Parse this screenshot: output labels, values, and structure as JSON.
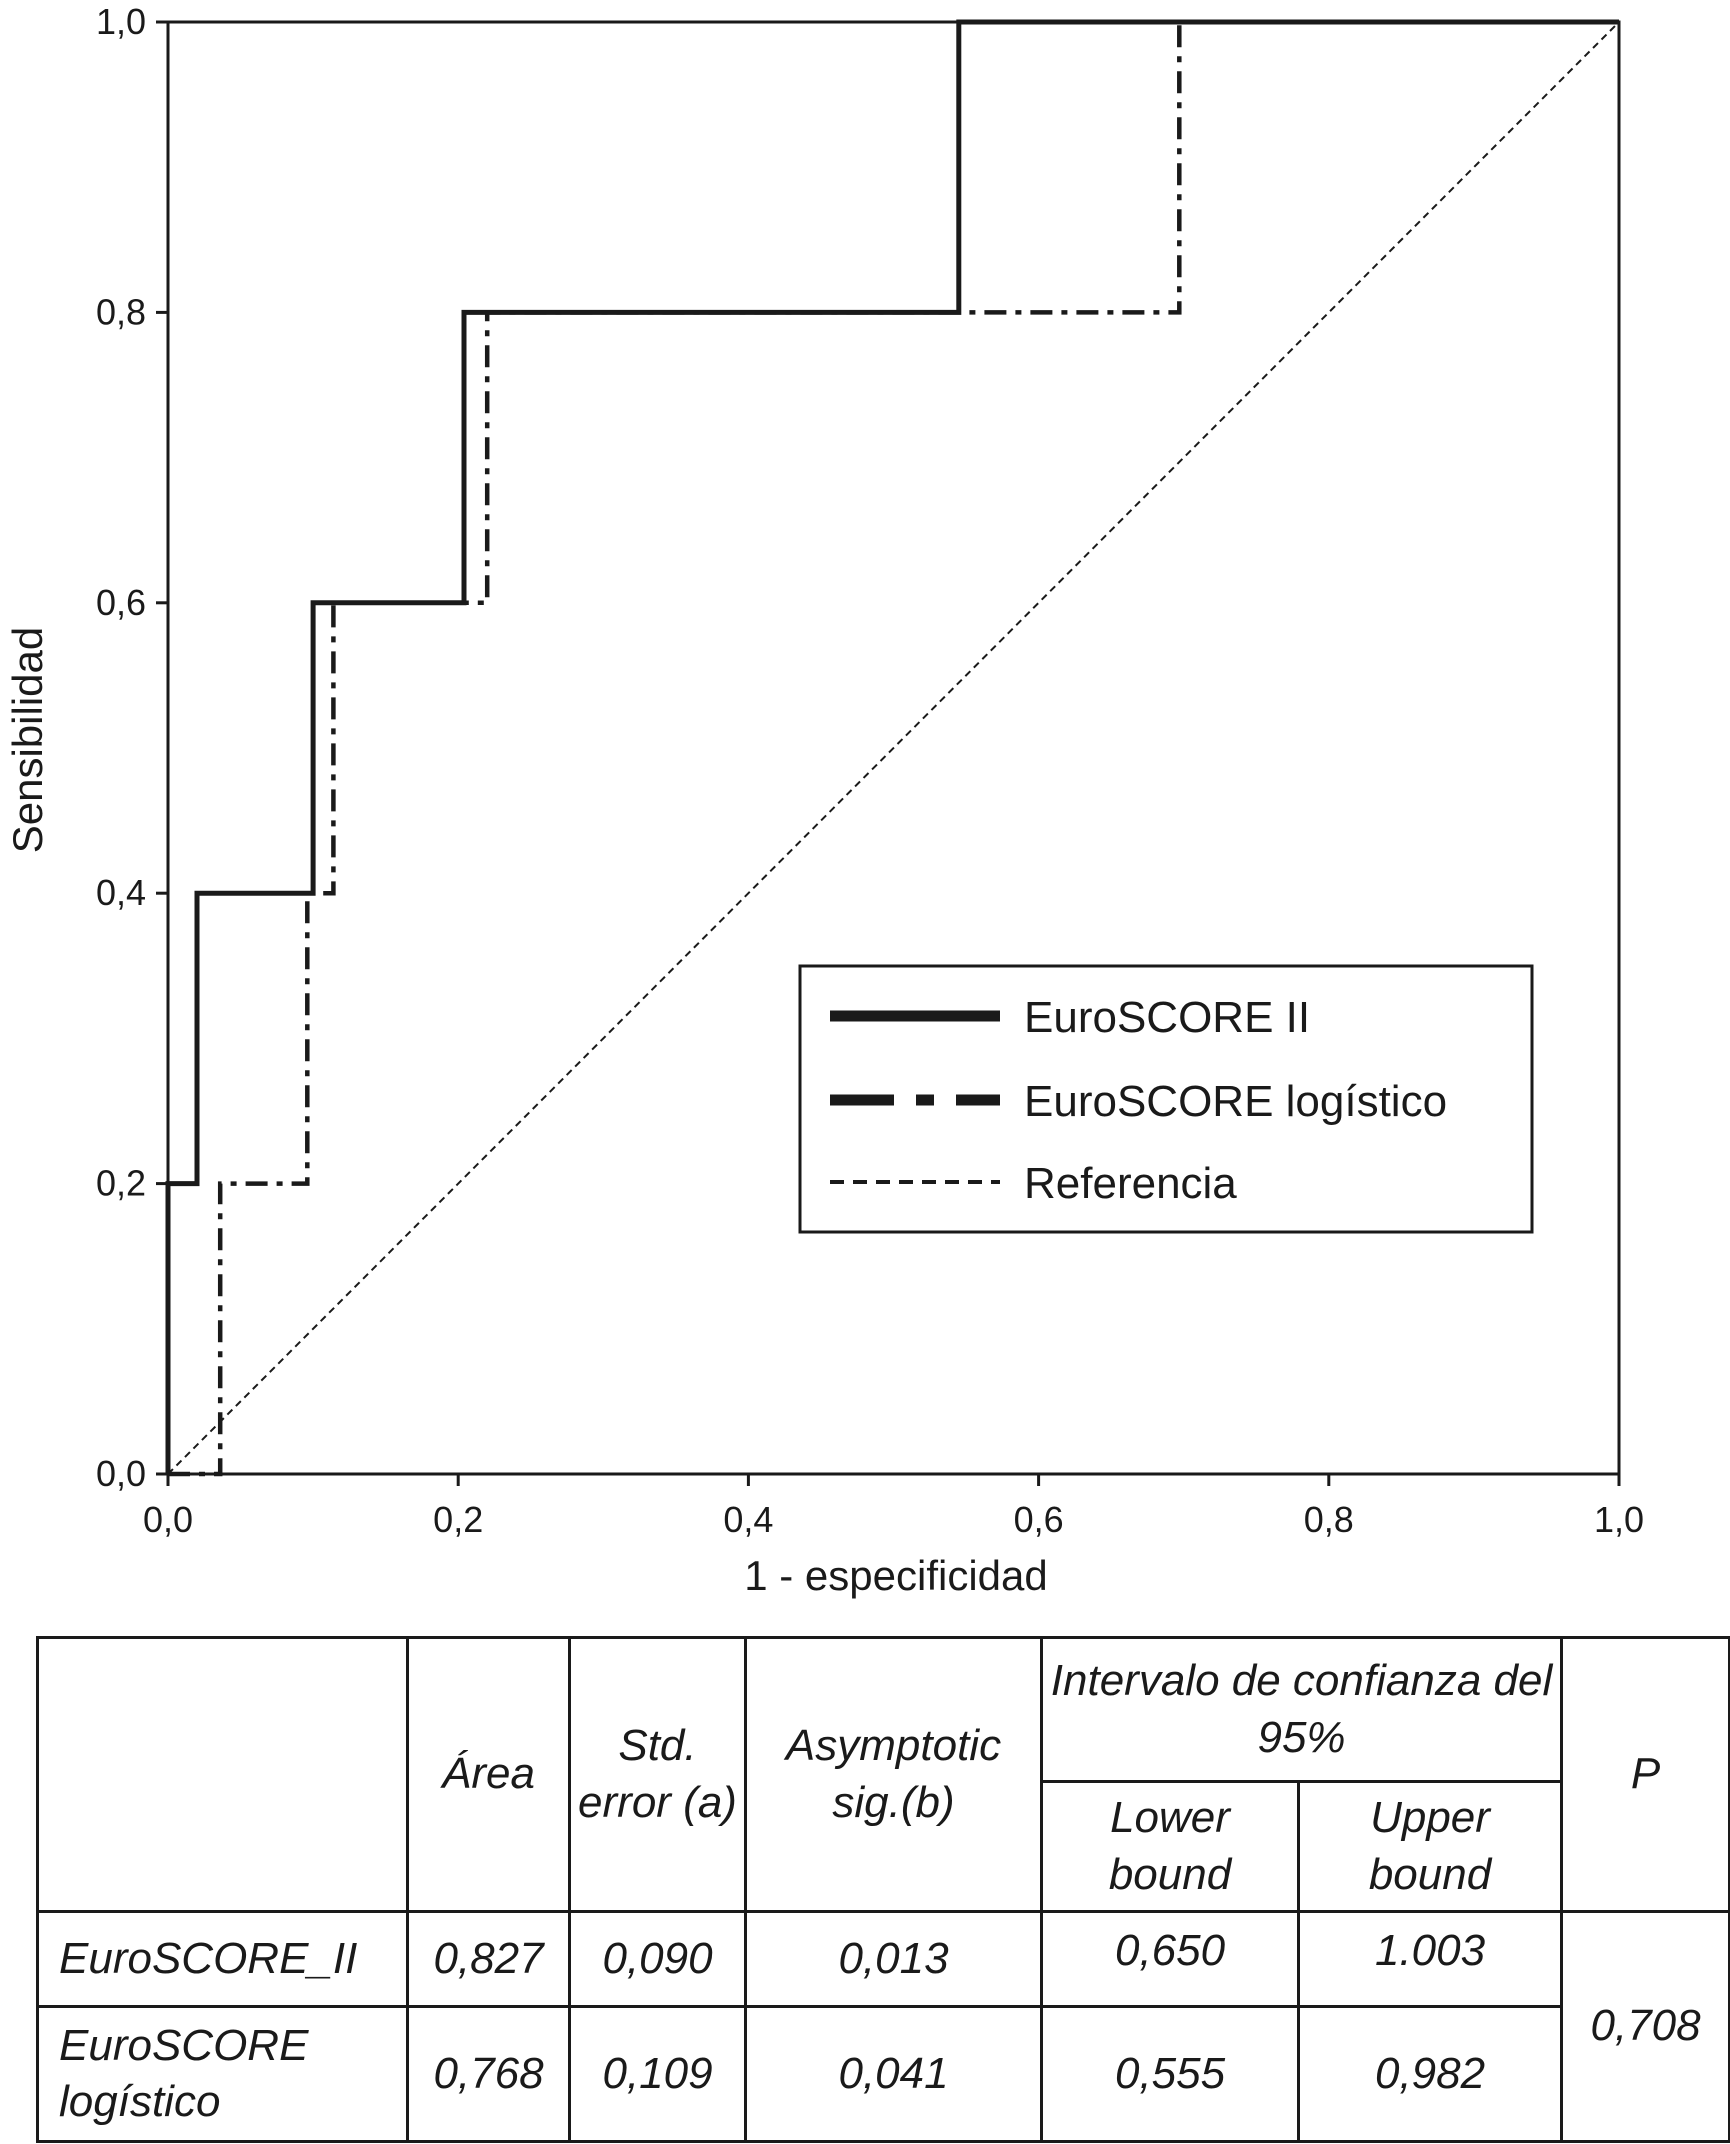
{
  "chart_data": {
    "type": "line",
    "title": "",
    "xlabel": "1 - especificidad",
    "ylabel": "Sensibilidad",
    "xlim": [
      0,
      1
    ],
    "ylim": [
      0,
      1
    ],
    "xticks": [
      0,
      0.2,
      0.4,
      0.6,
      0.8,
      1.0
    ],
    "yticks": [
      0,
      0.2,
      0.4,
      0.6,
      0.8,
      1.0
    ],
    "xtick_labels": [
      "0,0",
      "0,2",
      "0,4",
      "0,6",
      "0,8",
      "1,0"
    ],
    "ytick_labels": [
      "0,0",
      "0,2",
      "0,4",
      "0,6",
      "0,8",
      "1,0"
    ],
    "grid": false,
    "legend_position": "lower-right",
    "series": [
      {
        "name": "EuroSCORE II",
        "style": "solid",
        "x": [
          0,
          0,
          0.02,
          0.02,
          0.1,
          0.1,
          0.204,
          0.204,
          0.545,
          0.545,
          1.0
        ],
        "y": [
          0,
          0.2,
          0.2,
          0.4,
          0.4,
          0.6,
          0.6,
          0.8,
          0.8,
          1.0,
          1.0
        ]
      },
      {
        "name": "EuroSCORE logístico",
        "style": "dash-dot",
        "x": [
          0,
          0.036,
          0.036,
          0.096,
          0.096,
          0.114,
          0.114,
          0.22,
          0.22,
          0.697,
          0.697,
          1.0
        ],
        "y": [
          0,
          0,
          0.2,
          0.2,
          0.4,
          0.4,
          0.6,
          0.6,
          0.8,
          0.8,
          1.0,
          1.0
        ]
      },
      {
        "name": "Referencia",
        "style": "dashed",
        "x": [
          0,
          1
        ],
        "y": [
          0,
          1
        ]
      }
    ]
  },
  "table": {
    "header": {
      "area": "Área",
      "std_error": "Std. error (a)",
      "asymptotic": "Asymptotic sig.(b)",
      "ci": "Intervalo de confianza del 95%",
      "lower": "Lower bound",
      "upper": "Upper bound",
      "p": "P"
    },
    "rows": [
      {
        "name": "EuroSCORE_II",
        "area": "0,827",
        "std_error": "0,090",
        "asymptotic": "0,013",
        "lower": "0,650",
        "upper": "1.003"
      },
      {
        "name": "EuroSCORE logístico",
        "area": "0,768",
        "std_error": "0,109",
        "asymptotic": "0,041",
        "lower": "0,555",
        "upper": "0,982"
      }
    ],
    "p_value": "0,708"
  }
}
